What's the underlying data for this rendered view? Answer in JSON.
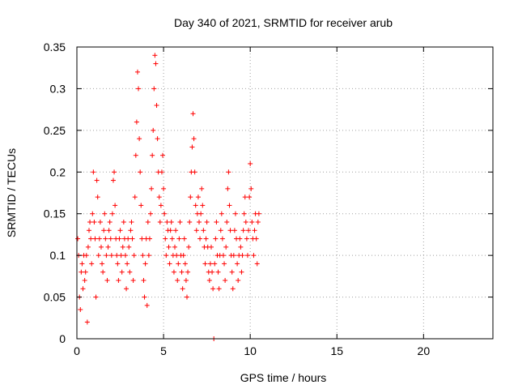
{
  "chart_data": {
    "type": "scatter",
    "title": "Day 340 of 2021, SRMTID for receiver arub",
    "xlabel": "GPS time / hours",
    "ylabel": "SRMTID / TECUs",
    "xlim": [
      0,
      24
    ],
    "ylim": [
      0,
      0.35
    ],
    "x_ticks": [
      0,
      5,
      10,
      15,
      20
    ],
    "x_tick_labels": [
      "0",
      "5",
      "10",
      "15",
      "20"
    ],
    "y_ticks": [
      0,
      0.05,
      0.1,
      0.15,
      0.2,
      0.25,
      0.3,
      0.35
    ],
    "y_tick_labels": [
      "0",
      "0.05",
      "0.1",
      "0.15",
      "0.2",
      "0.25",
      "0.3",
      "0.35"
    ],
    "grid": true,
    "marker": "+",
    "marker_color": "#ff0000",
    "series": [
      {
        "name": "SRMTID",
        "points": [
          [
            0.05,
            0.12
          ],
          [
            0.1,
            0.1
          ],
          [
            0.15,
            0.05
          ],
          [
            0.2,
            0.035
          ],
          [
            0.25,
            0.08
          ],
          [
            0.3,
            0.09
          ],
          [
            0.35,
            0.06
          ],
          [
            0.4,
            0.1
          ],
          [
            0.45,
            0.07
          ],
          [
            0.5,
            0.08
          ],
          [
            0.55,
            0.1
          ],
          [
            0.6,
            0.02
          ],
          [
            0.65,
            0.11
          ],
          [
            0.7,
            0.13
          ],
          [
            0.75,
            0.14
          ],
          [
            0.8,
            0.12
          ],
          [
            0.85,
            0.09
          ],
          [
            0.9,
            0.15
          ],
          [
            0.95,
            0.2
          ],
          [
            1.0,
            0.14
          ],
          [
            1.05,
            0.12
          ],
          [
            1.1,
            0.05
          ],
          [
            1.15,
            0.19
          ],
          [
            1.2,
            0.17
          ],
          [
            1.25,
            0.1
          ],
          [
            1.3,
            0.12
          ],
          [
            1.35,
            0.14
          ],
          [
            1.4,
            0.11
          ],
          [
            1.45,
            0.09
          ],
          [
            1.5,
            0.08
          ],
          [
            1.55,
            0.13
          ],
          [
            1.6,
            0.15
          ],
          [
            1.65,
            0.12
          ],
          [
            1.7,
            0.1
          ],
          [
            1.75,
            0.07
          ],
          [
            1.8,
            0.11
          ],
          [
            1.85,
            0.13
          ],
          [
            1.9,
            0.14
          ],
          [
            1.95,
            0.12
          ],
          [
            2.0,
            0.1
          ],
          [
            2.05,
            0.15
          ],
          [
            2.1,
            0.19
          ],
          [
            2.15,
            0.2
          ],
          [
            2.2,
            0.16
          ],
          [
            2.25,
            0.12
          ],
          [
            2.3,
            0.1
          ],
          [
            2.35,
            0.09
          ],
          [
            2.4,
            0.07
          ],
          [
            2.45,
            0.12
          ],
          [
            2.5,
            0.13
          ],
          [
            2.55,
            0.1
          ],
          [
            2.6,
            0.08
          ],
          [
            2.65,
            0.11
          ],
          [
            2.7,
            0.14
          ],
          [
            2.75,
            0.12
          ],
          [
            2.8,
            0.1
          ],
          [
            2.85,
            0.06
          ],
          [
            2.9,
            0.09
          ],
          [
            2.95,
            0.12
          ],
          [
            3.0,
            0.11
          ],
          [
            3.05,
            0.08
          ],
          [
            3.1,
            0.13
          ],
          [
            3.15,
            0.14
          ],
          [
            3.2,
            0.12
          ],
          [
            3.25,
            0.07
          ],
          [
            3.3,
            0.1
          ],
          [
            3.35,
            0.17
          ],
          [
            3.4,
            0.22
          ],
          [
            3.45,
            0.26
          ],
          [
            3.5,
            0.32
          ],
          [
            3.55,
            0.3
          ],
          [
            3.6,
            0.24
          ],
          [
            3.65,
            0.2
          ],
          [
            3.7,
            0.16
          ],
          [
            3.75,
            0.12
          ],
          [
            3.8,
            0.1
          ],
          [
            3.85,
            0.07
          ],
          [
            3.9,
            0.05
          ],
          [
            3.95,
            0.09
          ],
          [
            4.0,
            0.12
          ],
          [
            4.05,
            0.04
          ],
          [
            4.1,
            0.14
          ],
          [
            4.15,
            0.1
          ],
          [
            4.2,
            0.12
          ],
          [
            4.25,
            0.15
          ],
          [
            4.3,
            0.18
          ],
          [
            4.35,
            0.22
          ],
          [
            4.4,
            0.25
          ],
          [
            4.45,
            0.3
          ],
          [
            4.5,
            0.34
          ],
          [
            4.55,
            0.33
          ],
          [
            4.6,
            0.28
          ],
          [
            4.65,
            0.24
          ],
          [
            4.7,
            0.2
          ],
          [
            4.75,
            0.17
          ],
          [
            4.8,
            0.14
          ],
          [
            4.85,
            0.16
          ],
          [
            4.9,
            0.2
          ],
          [
            4.95,
            0.22
          ],
          [
            5.0,
            0.18
          ],
          [
            5.05,
            0.15
          ],
          [
            5.1,
            0.12
          ],
          [
            5.15,
            0.1
          ],
          [
            5.2,
            0.14
          ],
          [
            5.25,
            0.13
          ],
          [
            5.3,
            0.11
          ],
          [
            5.35,
            0.09
          ],
          [
            5.4,
            0.13
          ],
          [
            5.45,
            0.14
          ],
          [
            5.5,
            0.12
          ],
          [
            5.55,
            0.1
          ],
          [
            5.6,
            0.08
          ],
          [
            5.65,
            0.11
          ],
          [
            5.7,
            0.13
          ],
          [
            5.75,
            0.1
          ],
          [
            5.8,
            0.07
          ],
          [
            5.85,
            0.09
          ],
          [
            5.9,
            0.12
          ],
          [
            5.95,
            0.14
          ],
          [
            6.0,
            0.1
          ],
          [
            6.05,
            0.08
          ],
          [
            6.1,
            0.06
          ],
          [
            6.15,
            0.1
          ],
          [
            6.2,
            0.12
          ],
          [
            6.25,
            0.09
          ],
          [
            6.3,
            0.07
          ],
          [
            6.35,
            0.05
          ],
          [
            6.4,
            0.08
          ],
          [
            6.45,
            0.11
          ],
          [
            6.5,
            0.14
          ],
          [
            6.55,
            0.17
          ],
          [
            6.6,
            0.2
          ],
          [
            6.65,
            0.23
          ],
          [
            6.7,
            0.27
          ],
          [
            6.75,
            0.24
          ],
          [
            6.8,
            0.2
          ],
          [
            6.85,
            0.16
          ],
          [
            6.9,
            0.13
          ],
          [
            6.95,
            0.15
          ],
          [
            7.0,
            0.17
          ],
          [
            7.05,
            0.14
          ],
          [
            7.1,
            0.12
          ],
          [
            7.15,
            0.15
          ],
          [
            7.2,
            0.18
          ],
          [
            7.25,
            0.16
          ],
          [
            7.3,
            0.13
          ],
          [
            7.35,
            0.11
          ],
          [
            7.4,
            0.09
          ],
          [
            7.45,
            0.12
          ],
          [
            7.5,
            0.14
          ],
          [
            7.55,
            0.11
          ],
          [
            7.6,
            0.08
          ],
          [
            7.65,
            0.07
          ],
          [
            7.7,
            0.09
          ],
          [
            7.75,
            0.11
          ],
          [
            7.8,
            0.08
          ],
          [
            7.85,
            0.06
          ],
          [
            7.9,
            0.0
          ],
          [
            7.95,
            0.09
          ],
          [
            8.0,
            0.12
          ],
          [
            8.05,
            0.14
          ],
          [
            8.1,
            0.1
          ],
          [
            8.15,
            0.08
          ],
          [
            8.2,
            0.06
          ],
          [
            8.25,
            0.1
          ],
          [
            8.3,
            0.13
          ],
          [
            8.35,
            0.15
          ],
          [
            8.4,
            0.12
          ],
          [
            8.45,
            0.1
          ],
          [
            8.5,
            0.09
          ],
          [
            8.55,
            0.07
          ],
          [
            8.6,
            0.11
          ],
          [
            8.65,
            0.14
          ],
          [
            8.7,
            0.18
          ],
          [
            8.75,
            0.2
          ],
          [
            8.8,
            0.16
          ],
          [
            8.85,
            0.13
          ],
          [
            8.9,
            0.1
          ],
          [
            8.95,
            0.08
          ],
          [
            9.0,
            0.06
          ],
          [
            9.05,
            0.1
          ],
          [
            9.1,
            0.13
          ],
          [
            9.15,
            0.15
          ],
          [
            9.2,
            0.12
          ],
          [
            9.25,
            0.09
          ],
          [
            9.3,
            0.07
          ],
          [
            9.35,
            0.1
          ],
          [
            9.4,
            0.12
          ],
          [
            9.45,
            0.11
          ],
          [
            9.5,
            0.08
          ],
          [
            9.55,
            0.1
          ],
          [
            9.6,
            0.13
          ],
          [
            9.65,
            0.15
          ],
          [
            9.7,
            0.17
          ],
          [
            9.75,
            0.14
          ],
          [
            9.8,
            0.12
          ],
          [
            9.85,
            0.1
          ],
          [
            9.9,
            0.13
          ],
          [
            9.95,
            0.17
          ],
          [
            10.0,
            0.21
          ],
          [
            10.05,
            0.18
          ],
          [
            10.1,
            0.14
          ],
          [
            10.15,
            0.12
          ],
          [
            10.2,
            0.1
          ],
          [
            10.25,
            0.13
          ],
          [
            10.3,
            0.15
          ],
          [
            10.35,
            0.12
          ],
          [
            10.4,
            0.09
          ],
          [
            10.45,
            0.14
          ],
          [
            10.5,
            0.15
          ]
        ]
      }
    ]
  }
}
